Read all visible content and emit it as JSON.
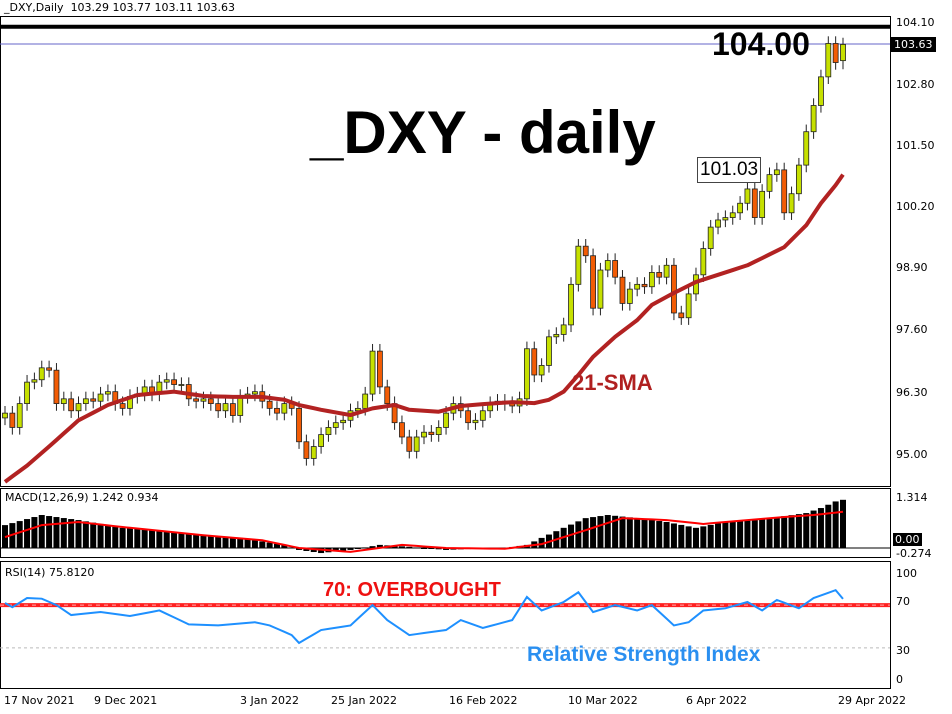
{
  "header": {
    "symbol_timeframe": "_DXY,Daily",
    "ohlc_text": "103.29 103.77 103.11 103.63"
  },
  "annotations": {
    "title": "_DXY - daily",
    "resistance_label": "104.00",
    "callout_label": "101.03",
    "sma_label": "21-SMA",
    "overbought_label": "70: OVERBOUGHT",
    "rsi_caption": "Relative Strength Index"
  },
  "current_price_tag": "103.63",
  "colors": {
    "bull": "#c6e000",
    "bear": "#f25c05",
    "sma": "#b22222",
    "macd_hist": "#000000",
    "macd_signal": "#ff0000",
    "rsi": "#1e90ff",
    "overbought_line": "#ff2020",
    "current_price_line": "#6464c8"
  },
  "chart_data": [
    {
      "type": "candlestick",
      "title": "_DXY,Daily",
      "y_ticks": [
        "104.10",
        "102.80",
        "101.50",
        "100.20",
        "98.90",
        "97.60",
        "96.30",
        "95.00"
      ],
      "ylim": [
        94.6,
        104.2
      ],
      "x_tick_labels": [
        "17 Nov 2021",
        "9 Dec 2021",
        "3 Jan 2022",
        "25 Jan 2022",
        "16 Feb 2022",
        "10 Mar 2022",
        "6 Apr 2022",
        "29 Apr 2022"
      ],
      "last_bar": {
        "open": 103.29,
        "high": 103.77,
        "low": 103.11,
        "close": 103.63
      },
      "close": [
        95.9,
        95.6,
        96.1,
        96.55,
        96.6,
        96.85,
        96.8,
        96.1,
        96.2,
        95.95,
        96.1,
        96.2,
        96.15,
        96.3,
        96.35,
        96.1,
        96.0,
        96.25,
        96.3,
        96.45,
        96.3,
        96.55,
        96.6,
        96.5,
        96.5,
        96.2,
        96.15,
        96.2,
        96.1,
        95.95,
        96.1,
        95.85,
        96.25,
        96.3,
        96.35,
        96.15,
        96.0,
        95.9,
        96.1,
        96.0,
        95.3,
        94.95,
        95.2,
        95.45,
        95.6,
        95.7,
        95.75,
        95.95,
        96.0,
        96.3,
        97.2,
        96.45,
        96.1,
        95.7,
        95.4,
        95.1,
        95.4,
        95.5,
        95.45,
        95.6,
        95.9,
        96.1,
        95.95,
        95.7,
        95.75,
        95.95,
        96.1,
        96.15,
        96.1,
        96.05,
        96.2,
        97.25,
        96.7,
        96.9,
        97.5,
        97.55,
        97.75,
        98.6,
        99.4,
        99.2,
        98.1,
        98.9,
        99.1,
        98.75,
        98.2,
        98.5,
        98.6,
        98.55,
        98.85,
        98.75,
        99.0,
        98.0,
        97.9,
        98.4,
        98.8,
        99.35,
        99.8,
        99.95,
        100.0,
        100.1,
        100.3,
        100.6,
        100.0,
        100.55,
        100.9,
        101.0,
        100.1,
        100.5,
        101.1,
        101.8,
        102.35,
        102.95,
        103.65,
        103.25,
        103.63
      ],
      "sma21_points": [
        [
          0,
          94.46
        ],
        [
          3,
          94.8
        ],
        [
          6,
          95.2
        ],
        [
          10,
          95.75
        ],
        [
          14,
          96.07
        ],
        [
          18,
          96.28
        ],
        [
          23,
          96.35
        ],
        [
          27,
          96.26
        ],
        [
          31,
          96.24
        ],
        [
          35,
          96.24
        ],
        [
          38,
          96.18
        ],
        [
          40,
          96.07
        ],
        [
          43,
          95.97
        ],
        [
          47,
          95.86
        ],
        [
          50,
          96.0
        ],
        [
          53,
          96.07
        ],
        [
          55,
          95.97
        ],
        [
          59,
          95.93
        ],
        [
          62,
          96.05
        ],
        [
          65,
          96.09
        ],
        [
          69,
          96.13
        ],
        [
          72,
          96.11
        ],
        [
          74,
          96.18
        ],
        [
          76,
          96.35
        ],
        [
          78,
          96.7
        ],
        [
          80,
          97.08
        ],
        [
          83,
          97.5
        ],
        [
          86,
          97.85
        ],
        [
          88,
          98.17
        ],
        [
          91,
          98.42
        ],
        [
          94,
          98.65
        ],
        [
          97,
          98.8
        ],
        [
          99,
          98.9
        ],
        [
          101,
          99.0
        ],
        [
          103,
          99.15
        ],
        [
          106,
          99.38
        ],
        [
          109,
          99.84
        ],
        [
          111,
          100.3
        ],
        [
          113,
          100.68
        ],
        [
          114,
          100.9
        ]
      ],
      "horizontal_levels": [
        104.0,
        103.63
      ]
    },
    {
      "type": "bar",
      "title": "MACD(12,26,9) 1.242 0.934",
      "y_ticks": [
        "1.314",
        "0.00",
        "-0.274"
      ],
      "ylim": [
        -0.274,
        1.314
      ],
      "histogram_points": [
        [
          0,
          0.59
        ],
        [
          5,
          0.85
        ],
        [
          10,
          0.72
        ],
        [
          16,
          0.52
        ],
        [
          21,
          0.46
        ],
        [
          27,
          0.33
        ],
        [
          32,
          0.26
        ],
        [
          38,
          0.08
        ],
        [
          40,
          -0.05
        ],
        [
          43,
          -0.13
        ],
        [
          47,
          -0.05
        ],
        [
          51,
          0.08
        ],
        [
          55,
          0.03
        ],
        [
          60,
          -0.05
        ],
        [
          64,
          -0.02
        ],
        [
          68,
          0.0
        ],
        [
          71,
          0.08
        ],
        [
          73,
          0.26
        ],
        [
          76,
          0.52
        ],
        [
          79,
          0.77
        ],
        [
          82,
          0.85
        ],
        [
          86,
          0.77
        ],
        [
          90,
          0.67
        ],
        [
          94,
          0.52
        ],
        [
          98,
          0.67
        ],
        [
          102,
          0.72
        ],
        [
          106,
          0.82
        ],
        [
          109,
          0.9
        ],
        [
          111,
          1.03
        ],
        [
          113,
          1.2
        ],
        [
          114,
          1.242
        ]
      ],
      "signal_points": [
        [
          0,
          0.28
        ],
        [
          5,
          0.59
        ],
        [
          10,
          0.67
        ],
        [
          16,
          0.54
        ],
        [
          27,
          0.33
        ],
        [
          35,
          0.2
        ],
        [
          40,
          0.0
        ],
        [
          47,
          -0.1
        ],
        [
          54,
          0.08
        ],
        [
          60,
          0.0
        ],
        [
          68,
          -0.02
        ],
        [
          73,
          0.1
        ],
        [
          79,
          0.46
        ],
        [
          84,
          0.77
        ],
        [
          90,
          0.72
        ],
        [
          95,
          0.62
        ],
        [
          101,
          0.72
        ],
        [
          106,
          0.8
        ],
        [
          110,
          0.85
        ],
        [
          114,
          0.934
        ]
      ]
    },
    {
      "type": "line",
      "title": "RSI(14) 75.8120",
      "y_ticks": [
        "100",
        "70",
        "30",
        "0"
      ],
      "ylim": [
        0,
        100
      ],
      "levels": [
        70,
        30
      ],
      "rsi_points": [
        [
          0,
          72
        ],
        [
          1,
          68
        ],
        [
          3,
          76.6
        ],
        [
          5,
          76
        ],
        [
          7,
          70
        ],
        [
          9,
          60.7
        ],
        [
          13,
          63.5
        ],
        [
          17,
          59.8
        ],
        [
          21,
          65
        ],
        [
          25,
          52
        ],
        [
          29,
          51
        ],
        [
          34,
          54
        ],
        [
          36,
          51
        ],
        [
          39,
          42
        ],
        [
          40,
          34.6
        ],
        [
          43,
          46.7
        ],
        [
          47,
          51
        ],
        [
          50,
          70
        ],
        [
          52,
          56
        ],
        [
          55,
          42
        ],
        [
          60,
          46.7
        ],
        [
          62,
          56
        ],
        [
          65,
          48.6
        ],
        [
          69,
          56
        ],
        [
          71,
          77.6
        ],
        [
          73,
          65
        ],
        [
          76,
          72.9
        ],
        [
          78,
          82
        ],
        [
          80,
          63.5
        ],
        [
          83,
          70
        ],
        [
          86,
          65
        ],
        [
          88,
          70
        ],
        [
          91,
          51
        ],
        [
          93,
          54
        ],
        [
          95,
          65
        ],
        [
          98,
          67
        ],
        [
          101,
          72.9
        ],
        [
          103,
          65
        ],
        [
          105,
          74.8
        ],
        [
          108,
          67
        ],
        [
          110,
          76.6
        ],
        [
          113,
          84
        ],
        [
          114,
          75.812
        ]
      ]
    }
  ]
}
